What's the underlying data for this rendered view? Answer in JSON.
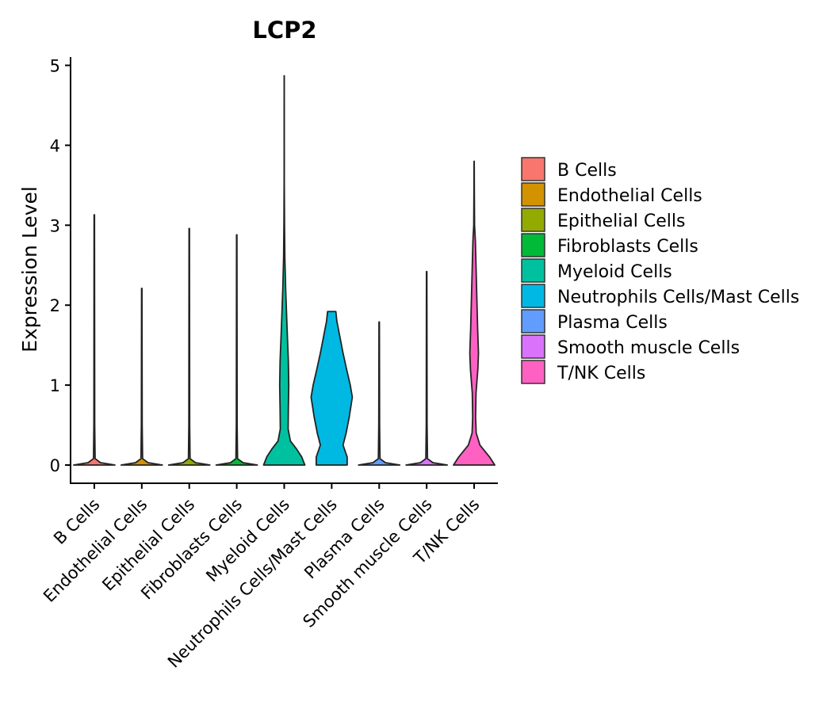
{
  "chart_data": {
    "type": "violin",
    "title": "LCP2",
    "xlabel": "",
    "ylabel": "Expression Level",
    "ylim": [
      -0.24,
      5.1
    ],
    "yticks": [
      0,
      1,
      2,
      3,
      4,
      5
    ],
    "legend_position": "right",
    "categories": [
      "B Cells",
      "Endothelial Cells",
      "Epithelial Cells",
      "Fibroblasts Cells",
      "Myeloid Cells",
      "Neutrophils Cells/Mast Cells",
      "Plasma Cells",
      "Smooth muscle Cells",
      "T/NK Cells"
    ],
    "colors": [
      "#F8766D",
      "#D39200",
      "#93AA00",
      "#00BA38",
      "#00C19F",
      "#00B9E3",
      "#619CFF",
      "#DB72FB",
      "#FF61C3"
    ],
    "series": [
      {
        "name": "B Cells",
        "max": 3.13,
        "profile": [
          [
            0,
            1.0
          ],
          [
            0.03,
            0.3
          ],
          [
            0.08,
            0.04
          ],
          [
            0.5,
            0.02
          ],
          [
            3.13,
            0.01
          ]
        ]
      },
      {
        "name": "Endothelial Cells",
        "max": 2.21,
        "profile": [
          [
            0,
            1.0
          ],
          [
            0.03,
            0.3
          ],
          [
            0.08,
            0.04
          ],
          [
            0.5,
            0.02
          ],
          [
            2.21,
            0.01
          ]
        ]
      },
      {
        "name": "Epithelial Cells",
        "max": 2.96,
        "profile": [
          [
            0,
            1.0
          ],
          [
            0.03,
            0.3
          ],
          [
            0.08,
            0.04
          ],
          [
            0.5,
            0.02
          ],
          [
            2.96,
            0.01
          ]
        ]
      },
      {
        "name": "Fibroblasts Cells",
        "max": 2.88,
        "profile": [
          [
            0,
            1.0
          ],
          [
            0.03,
            0.3
          ],
          [
            0.08,
            0.04
          ],
          [
            0.5,
            0.02
          ],
          [
            2.88,
            0.01
          ]
        ]
      },
      {
        "name": "Myeloid Cells",
        "max": 4.87,
        "profile": [
          [
            0,
            1.0
          ],
          [
            0.1,
            0.85
          ],
          [
            0.2,
            0.6
          ],
          [
            0.3,
            0.3
          ],
          [
            0.45,
            0.19
          ],
          [
            0.7,
            0.2
          ],
          [
            1.0,
            0.22
          ],
          [
            1.3,
            0.2
          ],
          [
            1.7,
            0.14
          ],
          [
            2.2,
            0.07
          ],
          [
            2.6,
            0.03
          ],
          [
            3.0,
            0.015
          ],
          [
            3.5,
            0.005
          ],
          [
            4.0,
            0.004
          ],
          [
            4.87,
            0.003
          ]
        ]
      },
      {
        "name": "Neutrophils Cells/Mast Cells",
        "max": 1.92,
        "profile": [
          [
            0,
            0.75
          ],
          [
            0.1,
            0.75
          ],
          [
            0.25,
            0.55
          ],
          [
            0.4,
            0.7
          ],
          [
            0.6,
            0.85
          ],
          [
            0.85,
            1.0
          ],
          [
            1.0,
            0.9
          ],
          [
            1.2,
            0.72
          ],
          [
            1.4,
            0.55
          ],
          [
            1.6,
            0.4
          ],
          [
            1.8,
            0.25
          ],
          [
            1.92,
            0.2
          ]
        ]
      },
      {
        "name": "Plasma Cells",
        "max": 1.79,
        "profile": [
          [
            0,
            1.0
          ],
          [
            0.03,
            0.3
          ],
          [
            0.08,
            0.04
          ],
          [
            0.5,
            0.02
          ],
          [
            1.79,
            0.01
          ]
        ]
      },
      {
        "name": "Smooth muscle Cells",
        "max": 2.42,
        "profile": [
          [
            0,
            1.0
          ],
          [
            0.03,
            0.3
          ],
          [
            0.08,
            0.04
          ],
          [
            0.5,
            0.02
          ],
          [
            2.42,
            0.01
          ]
        ]
      },
      {
        "name": "T/NK Cells",
        "max": 3.8,
        "profile": [
          [
            0,
            1.0
          ],
          [
            0.1,
            0.75
          ],
          [
            0.25,
            0.28
          ],
          [
            0.4,
            0.1
          ],
          [
            0.6,
            0.07
          ],
          [
            0.9,
            0.09
          ],
          [
            1.2,
            0.18
          ],
          [
            1.4,
            0.21
          ],
          [
            1.7,
            0.17
          ],
          [
            2.0,
            0.14
          ],
          [
            2.4,
            0.1
          ],
          [
            2.8,
            0.06
          ],
          [
            3.0,
            0.02
          ],
          [
            3.4,
            0.01
          ],
          [
            3.8,
            0.004
          ]
        ]
      }
    ]
  }
}
